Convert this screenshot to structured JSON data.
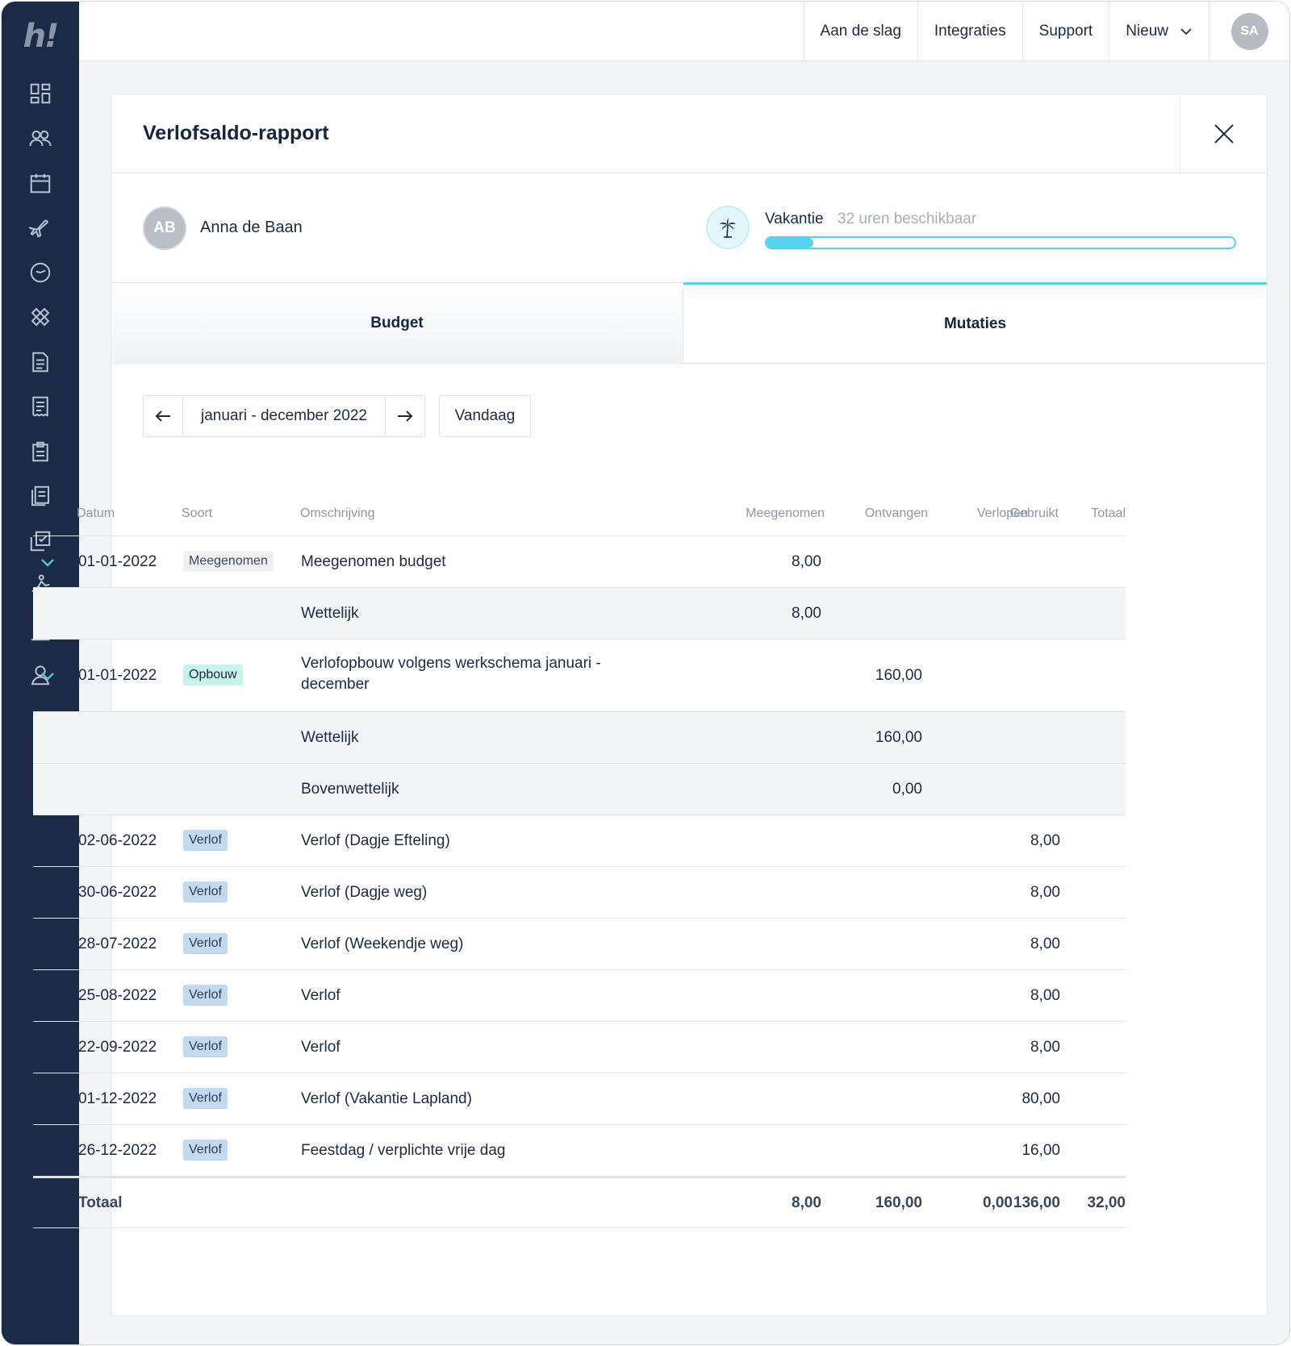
{
  "sidebar": {
    "logo": "h!",
    "items": [
      {
        "icon": "dashboard-icon"
      },
      {
        "icon": "people-icon"
      },
      {
        "icon": "calendar-icon"
      },
      {
        "icon": "airplane-icon"
      },
      {
        "icon": "clock-icon"
      },
      {
        "icon": "bandage-icon"
      },
      {
        "icon": "document-icon"
      },
      {
        "icon": "receipt-icon"
      },
      {
        "icon": "clipboard-icon"
      },
      {
        "icon": "documents-icon"
      },
      {
        "icon": "checklist-icon"
      },
      {
        "icon": "person-running-icon"
      },
      {
        "icon": "bar-chart-icon"
      },
      {
        "icon": "user-icon"
      }
    ]
  },
  "topbar": {
    "links": [
      "Aan de slag",
      "Integraties",
      "Support"
    ],
    "new_label": "Nieuw",
    "avatar_initials": "SA"
  },
  "card": {
    "title": "Verlofsaldo-rapport",
    "person": {
      "initials": "AB",
      "name": "Anna de Baan"
    },
    "leave": {
      "type": "Vakantie",
      "available": "32 uren beschikbaar",
      "progress": 0.1
    },
    "tabs": {
      "budget": "Budget",
      "mutaties": "Mutaties",
      "active": "mutaties"
    },
    "period": {
      "label": "januari - december 2022",
      "today": "Vandaag"
    }
  },
  "table": {
    "headers": {
      "datum": "Datum",
      "soort": "Soort",
      "omschrijving": "Omschrijving",
      "meegenomen": "Meegenomen",
      "ontvangen": "Ontvangen",
      "verlopen": "Verlopen",
      "gebruikt": "Gebruikt",
      "totaal": "Totaal"
    },
    "rows": [
      {
        "expand": true,
        "date": "01-01-2022",
        "type": "Meegenomen",
        "badge": "gray",
        "desc": "Meegenomen budget",
        "meegenomen": "8,00"
      },
      {
        "sub": true,
        "desc": "Wettelijk",
        "meegenomen": "8,00"
      },
      {
        "expand": true,
        "date": "01-01-2022",
        "type": "Opbouw",
        "badge": "green",
        "desc": "Verlofopbouw volgens werkschema januari -",
        "desc2": "december",
        "ontvangen": "160,00",
        "tall": true
      },
      {
        "sub": true,
        "desc": "Wettelijk",
        "ontvangen": "160,00"
      },
      {
        "sub": true,
        "desc": "Bovenwettelijk",
        "ontvangen": "0,00"
      },
      {
        "date": "02-06-2022",
        "type": "Verlof",
        "badge": "blue",
        "desc": "Verlof (Dagje Efteling)",
        "gebruikt": "8,00"
      },
      {
        "date": "30-06-2022",
        "type": "Verlof",
        "badge": "blue",
        "desc": "Verlof (Dagje weg)",
        "gebruikt": "8,00"
      },
      {
        "date": "28-07-2022",
        "type": "Verlof",
        "badge": "blue",
        "desc": "Verlof (Weekendje weg)",
        "gebruikt": "8,00"
      },
      {
        "date": "25-08-2022",
        "type": "Verlof",
        "badge": "blue",
        "desc": "Verlof",
        "gebruikt": "8,00"
      },
      {
        "date": "22-09-2022",
        "type": "Verlof",
        "badge": "blue",
        "desc": "Verlof",
        "gebruikt": "8,00"
      },
      {
        "date": "01-12-2022",
        "type": "Verlof",
        "badge": "blue",
        "desc": "Verlof (Vakantie Lapland)",
        "gebruikt": "80,00"
      },
      {
        "date": "26-12-2022",
        "type": "Verlof",
        "badge": "blue",
        "desc": "Feestdag / verplichte vrije dag",
        "gebruikt": "16,00"
      }
    ],
    "total": {
      "label": "Totaal",
      "meegenomen": "8,00",
      "ontvangen": "160,00",
      "verlopen": "0,00",
      "gebruikt": "136,00",
      "totaal": "32,00"
    }
  },
  "colors": {
    "sidebar": "#1b2a47",
    "accent": "#57d2ec"
  }
}
